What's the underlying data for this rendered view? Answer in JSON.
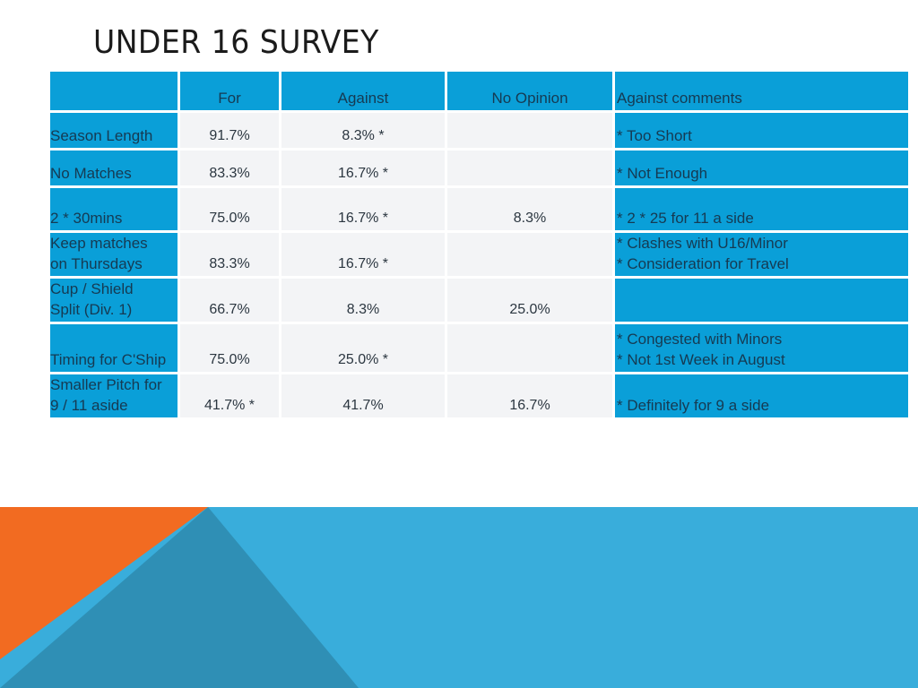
{
  "slide": {
    "title": "UNDER 16 SURVEY"
  },
  "table": {
    "headers": [
      "",
      "For",
      "Against",
      "No Opinion",
      "Against comments"
    ],
    "rows": [
      {
        "label": "Season Length",
        "for": "91.7%",
        "against": "8.3% *",
        "no_opinion": "",
        "comments": "* Too Short"
      },
      {
        "label": "No Matches",
        "for": "83.3%",
        "against": "16.7% *",
        "no_opinion": "",
        "comments": "* Not Enough"
      },
      {
        "label": "2 * 30mins",
        "for": "75.0%",
        "against": "16.7% *",
        "no_opinion": "8.3%",
        "comments": "* 2 * 25 for 11 a side"
      },
      {
        "label": "Keep matches\non Thursdays",
        "for": "83.3%",
        "against": "16.7% *",
        "no_opinion": "",
        "comments": "* Clashes with U16/Minor\n* Consideration for Travel"
      },
      {
        "label": "Cup / Shield\nSplit (Div. 1)",
        "for": "66.7%",
        "against": "8.3%",
        "no_opinion": "25.0%",
        "comments": ""
      },
      {
        "label": "Timing for C'Ship",
        "for": "75.0%",
        "against": "25.0% *",
        "no_opinion": "",
        "comments": "* Congested with Minors\n* Not 1st Week in August"
      },
      {
        "label": "Smaller Pitch for\n9 / 11 aside",
        "for": "41.7% *",
        "against": "41.7%",
        "no_opinion": "16.7%",
        "comments": "* Definitely for 9 a side"
      }
    ]
  },
  "colors": {
    "header_blue": "#0a9fd8",
    "cell_light": "#f3f4f6",
    "band_blue": "#39addb",
    "band_teal": "#2f8fb5",
    "band_orange": "#f26b21"
  }
}
